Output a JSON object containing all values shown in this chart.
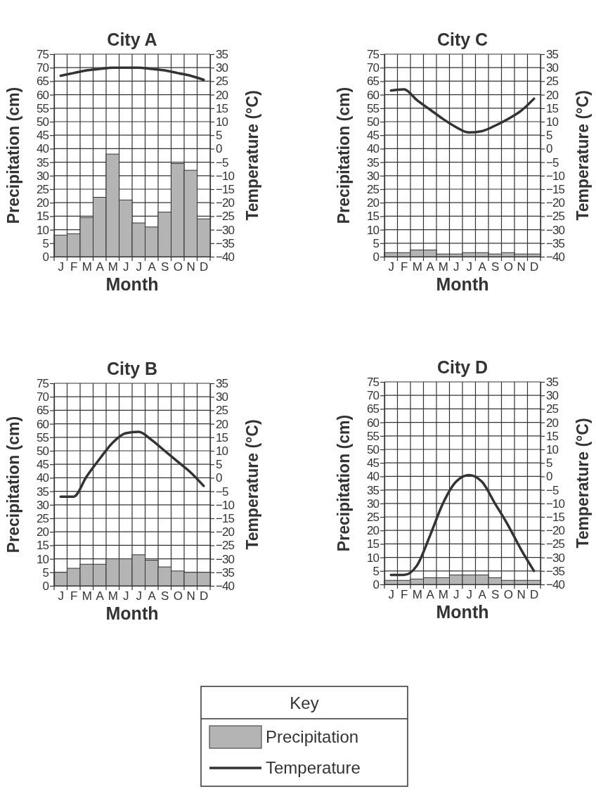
{
  "chart_data": [
    {
      "type": "bar",
      "title": "City A",
      "xlabel": "Month",
      "ylabel": "Precipitation (cm)",
      "y2label": "Temperature (°C)",
      "categories": [
        "J",
        "F",
        "M",
        "A",
        "M",
        "J",
        "J",
        "A",
        "S",
        "O",
        "N",
        "D"
      ],
      "ylim": [
        0,
        75
      ],
      "yticks": [
        0,
        5,
        10,
        15,
        20,
        25,
        30,
        35,
        40,
        45,
        50,
        55,
        60,
        65,
        70,
        75
      ],
      "y2lim": [
        -40,
        35
      ],
      "y2ticks": [
        -40,
        -35,
        -30,
        -25,
        -20,
        -15,
        -10,
        -5,
        0,
        5,
        10,
        15,
        20,
        25,
        30,
        35
      ],
      "grid": true,
      "series": [
        {
          "color": "#b4b4b4",
          "values": [
            8,
            8.5,
            14.5,
            22,
            38,
            21,
            12.5,
            11,
            16.5,
            34.5,
            32,
            14
          ]
        },
        {
          "type": "line",
          "axis": "y2",
          "color": "#333333",
          "values": [
            27,
            28,
            29,
            29.5,
            30,
            30,
            30,
            29.5,
            29,
            28,
            27,
            25.5
          ]
        }
      ]
    },
    {
      "type": "bar",
      "title": "City C",
      "xlabel": "Month",
      "ylabel": "Precipitation (cm)",
      "y2label": "Temperature (°C)",
      "categories": [
        "J",
        "F",
        "M",
        "A",
        "M",
        "J",
        "J",
        "A",
        "S",
        "O",
        "N",
        "D"
      ],
      "ylim": [
        0,
        75
      ],
      "yticks": [
        0,
        5,
        10,
        15,
        20,
        25,
        30,
        35,
        40,
        45,
        50,
        55,
        60,
        65,
        70,
        75
      ],
      "y2lim": [
        -40,
        35
      ],
      "y2ticks": [
        -40,
        -35,
        -30,
        -25,
        -20,
        -15,
        -10,
        -5,
        0,
        5,
        10,
        15,
        20,
        25,
        30,
        35
      ],
      "grid": true,
      "series": [
        {
          "color": "#b4b4b4",
          "values": [
            1.5,
            1.5,
            2.5,
            2.5,
            1,
            1,
            1.5,
            1.5,
            1,
            1.5,
            1,
            1
          ]
        },
        {
          "type": "line",
          "axis": "y2",
          "color": "#333333",
          "values": [
            21.5,
            22,
            18,
            14.5,
            11,
            8,
            6,
            6.5,
            8.5,
            11,
            14,
            18.5
          ]
        }
      ]
    },
    {
      "type": "bar",
      "title": "City B",
      "xlabel": "Month",
      "ylabel": "Precipitation (cm)",
      "y2label": "Temperature (°C)",
      "categories": [
        "J",
        "F",
        "M",
        "A",
        "M",
        "J",
        "J",
        "A",
        "S",
        "O",
        "N",
        "D"
      ],
      "ylim": [
        0,
        75
      ],
      "yticks": [
        0,
        5,
        10,
        15,
        20,
        25,
        30,
        35,
        40,
        45,
        50,
        55,
        60,
        65,
        70,
        75
      ],
      "y2lim": [
        -40,
        35
      ],
      "y2ticks": [
        -40,
        -35,
        -30,
        -25,
        -20,
        -15,
        -10,
        -5,
        0,
        5,
        10,
        15,
        20,
        25,
        30,
        35
      ],
      "grid": true,
      "series": [
        {
          "color": "#b4b4b4",
          "values": [
            5,
            6.5,
            8,
            8,
            10,
            10,
            11.5,
            9.5,
            7,
            5.5,
            5,
            5
          ]
        },
        {
          "type": "line",
          "axis": "y2",
          "color": "#333333",
          "values": [
            -7,
            -7,
            0.5,
            7,
            13,
            16.5,
            17,
            14,
            10,
            6,
            2,
            -3
          ]
        }
      ]
    },
    {
      "type": "bar",
      "title": "City D",
      "xlabel": "Month",
      "ylabel": "Precipitation (cm)",
      "y2label": "Temperature (°C)",
      "categories": [
        "J",
        "F",
        "M",
        "A",
        "M",
        "J",
        "J",
        "A",
        "S",
        "O",
        "N",
        "D"
      ],
      "ylim": [
        0,
        75
      ],
      "yticks": [
        0,
        5,
        10,
        15,
        20,
        25,
        30,
        35,
        40,
        45,
        50,
        55,
        60,
        65,
        70,
        75
      ],
      "y2lim": [
        -40,
        35
      ],
      "y2ticks": [
        -40,
        -35,
        -30,
        -25,
        -20,
        -15,
        -10,
        -5,
        0,
        5,
        10,
        15,
        20,
        25,
        30,
        35
      ],
      "grid": true,
      "legend": "bottom",
      "legend_title": "Key",
      "series": [
        {
          "name": "Precipitation",
          "color": "#b4b4b4",
          "values": [
            1.5,
            1.5,
            2,
            2.5,
            2.5,
            3.5,
            3.5,
            3.5,
            2.5,
            1.5,
            1.5,
            1.5
          ]
        },
        {
          "type": "line",
          "name": "Temperature",
          "axis": "y2",
          "color": "#333333",
          "values": [
            -36.5,
            -36.5,
            -33,
            -22,
            -10,
            -2,
            0.5,
            -2,
            -10,
            -18,
            -27,
            -35
          ]
        }
      ]
    }
  ]
}
